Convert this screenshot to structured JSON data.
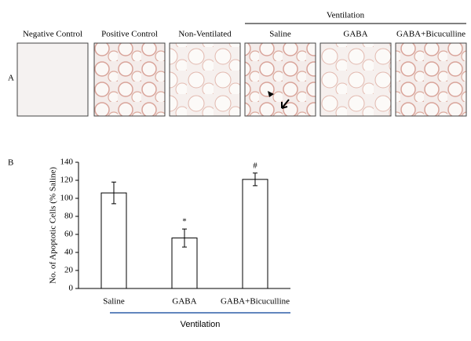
{
  "panel_a": {
    "label": "A",
    "group_label": "Ventilation",
    "images": [
      "Negative Control",
      "Positive Control",
      "Non-Ventilated",
      "Saline",
      "GABA",
      "GABA+Bicuculline"
    ]
  },
  "panel_b_label": "B",
  "chart_data": {
    "type": "bar",
    "y_label": "No. of Apoptotic Cells (% Saline)",
    "x_group_label": "Ventilation",
    "categories": [
      "Saline",
      "GABA",
      "GABA+Bicuculline"
    ],
    "values": [
      106,
      56,
      121
    ],
    "errors": [
      12,
      10,
      7
    ],
    "annotations": [
      null,
      "*",
      "#"
    ],
    "color": "#ffffff",
    "ylim": [
      0,
      140
    ],
    "yticks": [
      0,
      20,
      40,
      60,
      80,
      100,
      120,
      140
    ]
  }
}
